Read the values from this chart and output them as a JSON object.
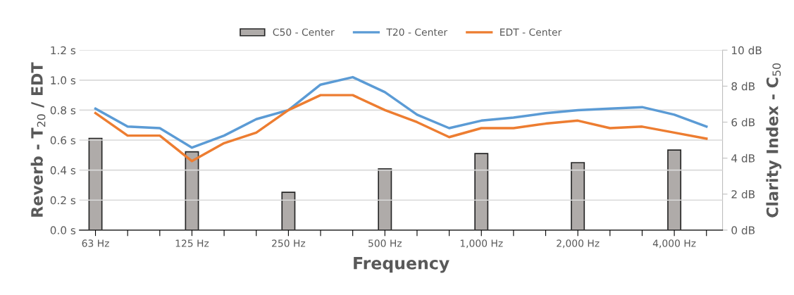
{
  "chart_data": {
    "type": "line",
    "xlabel": "Frequency",
    "ylabel": "Reverb - T$_{20}$ / EDT",
    "y2label": "Clarity Index - C$_{50}$",
    "categories": [
      "63 Hz",
      null,
      null,
      "125 Hz",
      null,
      null,
      "250 Hz",
      null,
      null,
      "500 Hz",
      null,
      null,
      "1,000 Hz",
      null,
      null,
      "2,000 Hz",
      null,
      null,
      "4,000 Hz",
      null
    ],
    "series": [
      {
        "name": "C50 - Center",
        "type": "bar",
        "axis": "y2",
        "color": "#afaba9",
        "values": [
          5.1,
          null,
          null,
          4.35,
          null,
          null,
          2.1,
          null,
          null,
          3.4,
          null,
          null,
          4.25,
          null,
          null,
          3.75,
          null,
          null,
          4.45,
          null
        ]
      },
      {
        "name": "T20 - Center",
        "color": "#5b9bd5",
        "values": [
          0.81,
          0.69,
          0.68,
          0.55,
          0.63,
          0.74,
          0.8,
          0.97,
          1.02,
          0.92,
          0.77,
          0.68,
          0.73,
          0.75,
          0.78,
          0.8,
          0.81,
          0.82,
          0.77,
          0.69
        ]
      },
      {
        "name": "EDT - Center",
        "color": "#ed7d31",
        "values": [
          0.78,
          0.63,
          0.63,
          0.46,
          0.58,
          0.65,
          0.8,
          0.9,
          0.9,
          0.8,
          0.72,
          0.62,
          0.68,
          0.68,
          0.71,
          0.73,
          0.68,
          0.69,
          0.65,
          0.61
        ]
      }
    ],
    "ylim": [
      0,
      1.2
    ],
    "yticks": [
      {
        "value": 0,
        "label": "0.0 s"
      },
      {
        "value": 0.2,
        "label": "0.2 s"
      },
      {
        "value": 0.4,
        "label": "0.4 s"
      },
      {
        "value": 0.6,
        "label": "0.6 s"
      },
      {
        "value": 0.8,
        "label": "0.8 s"
      },
      {
        "value": 1.0,
        "label": "1.0 s"
      },
      {
        "value": 1.2,
        "label": "1.2 s"
      }
    ],
    "y2lim": [
      0,
      10
    ],
    "y2ticks": [
      {
        "value": 0,
        "label": "0 dB"
      },
      {
        "value": 2,
        "label": "2 dB"
      },
      {
        "value": 4,
        "label": "4 dB"
      },
      {
        "value": 6,
        "label": "6 dB"
      },
      {
        "value": 8,
        "label": "8 dB"
      },
      {
        "value": 10,
        "label": "10 dB"
      }
    ],
    "grid": "y",
    "legend": "top"
  }
}
